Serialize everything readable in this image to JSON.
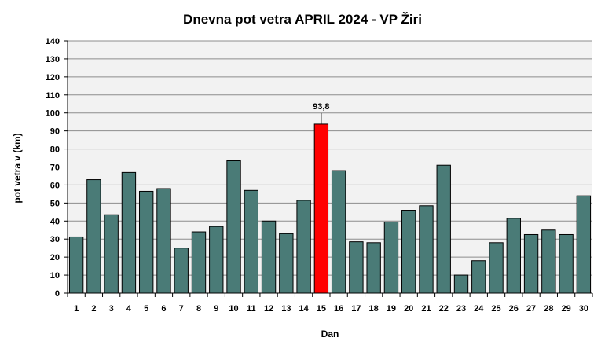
{
  "chart_data": {
    "type": "bar",
    "title": "Dnevna pot vetra APRIL 2024 - VP Žiri",
    "xlabel": "Dan",
    "ylabel": "pot vetra  v (km)",
    "ylim": [
      0,
      140
    ],
    "yticks": [
      0,
      10,
      20,
      30,
      40,
      50,
      60,
      70,
      80,
      90,
      100,
      110,
      120,
      130,
      140
    ],
    "grid": true,
    "categories": [
      "1",
      "2",
      "3",
      "4",
      "5",
      "6",
      "7",
      "8",
      "9",
      "10",
      "11",
      "12",
      "13",
      "14",
      "15",
      "16",
      "17",
      "18",
      "19",
      "20",
      "21",
      "22",
      "23",
      "24",
      "25",
      "26",
      "27",
      "28",
      "29",
      "30"
    ],
    "values": [
      31.2,
      63.0,
      43.5,
      67.0,
      56.5,
      58.0,
      25.0,
      34.0,
      37.0,
      73.5,
      57.0,
      40.0,
      33.0,
      51.5,
      93.8,
      68.0,
      28.5,
      28.0,
      39.5,
      46.0,
      48.5,
      71.0,
      10.0,
      18.0,
      28.0,
      41.5,
      32.5,
      35.0,
      32.5,
      54.0
    ],
    "highlight": {
      "index": 14,
      "label": "93,8"
    },
    "colors": {
      "bar": "#4a7b77",
      "highlight": "#ff0000",
      "plot_background": "#f2f2f2",
      "grid": "#8c8c8c"
    }
  }
}
